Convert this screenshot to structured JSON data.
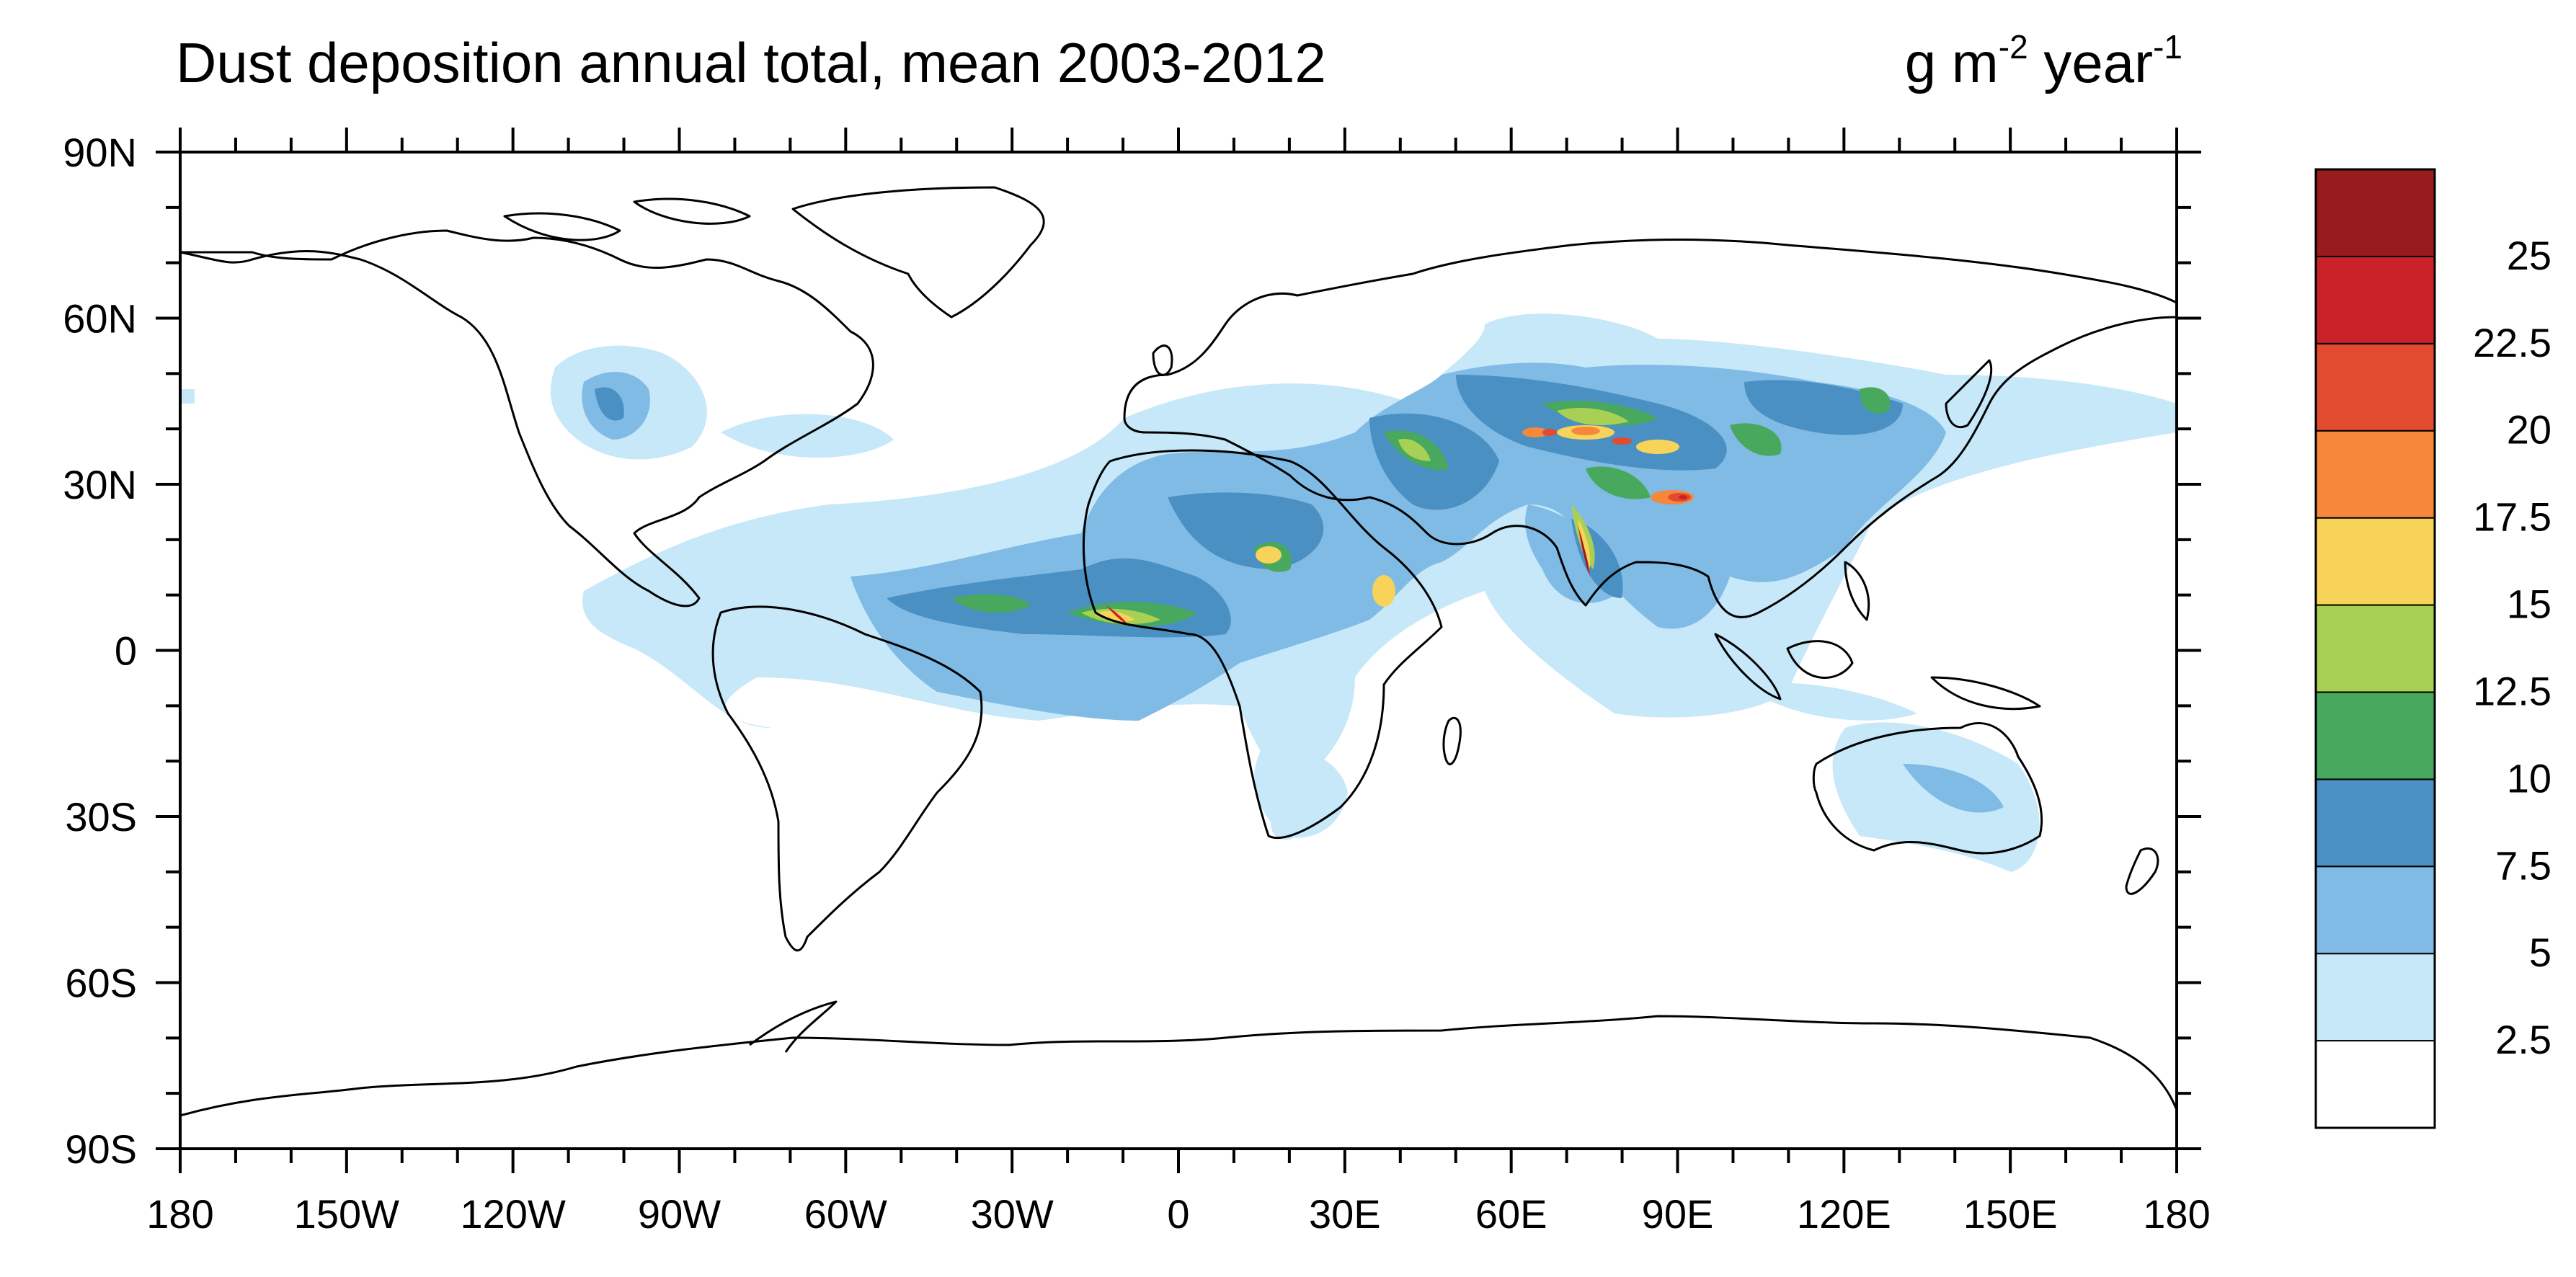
{
  "title": "Dust deposition annual total, mean 2003-2012",
  "units": {
    "base": "g m",
    "exp1": "-2",
    "mid": " year",
    "exp2": "-1"
  },
  "map": {
    "projection": "equirectangular",
    "lon_range": [
      -180,
      180
    ],
    "lat_range": [
      -90,
      90
    ],
    "lon_ticks": [
      {
        "lon": -180,
        "label": "180"
      },
      {
        "lon": -150,
        "label": "150W"
      },
      {
        "lon": -120,
        "label": "120W"
      },
      {
        "lon": -90,
        "label": "90W"
      },
      {
        "lon": -60,
        "label": "60W"
      },
      {
        "lon": -30,
        "label": "30W"
      },
      {
        "lon": 0,
        "label": "0"
      },
      {
        "lon": 30,
        "label": "30E"
      },
      {
        "lon": 60,
        "label": "60E"
      },
      {
        "lon": 90,
        "label": "90E"
      },
      {
        "lon": 120,
        "label": "120E"
      },
      {
        "lon": 150,
        "label": "150E"
      },
      {
        "lon": 180,
        "label": "180"
      }
    ],
    "lat_ticks": [
      {
        "lat": 90,
        "label": "90N"
      },
      {
        "lat": 60,
        "label": "60N"
      },
      {
        "lat": 30,
        "label": "30N"
      },
      {
        "lat": 0,
        "label": "0"
      },
      {
        "lat": -30,
        "label": "30S"
      },
      {
        "lat": -60,
        "label": "60S"
      },
      {
        "lat": -90,
        "label": "90S"
      }
    ]
  },
  "colorbar": {
    "levels": [
      "2.5",
      "5",
      "7.5",
      "10",
      "12.5",
      "15",
      "17.5",
      "20",
      "22.5",
      "25"
    ],
    "colors": [
      "#ffffff",
      "#c6e8f8",
      "#80bbe6",
      "#4a90c2",
      "#48a95e",
      "#a8d055",
      "#f8d35a",
      "#f5883a",
      "#e24b2f",
      "#cb2128",
      "#981b1e"
    ]
  }
}
